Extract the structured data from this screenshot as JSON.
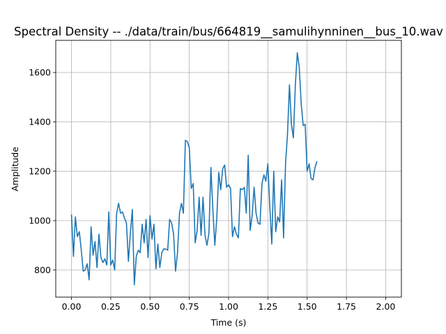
{
  "chart_data": {
    "type": "line",
    "title": "Spectral Density -- ./data/train/bus/664819__samulihynninen__bus_10.wav",
    "xlabel": "Time (s)",
    "ylabel": "Amplitude",
    "xlim": [
      -0.1,
      2.1
    ],
    "ylim": [
      690,
      1730
    ],
    "x_ticks": [
      0.0,
      0.25,
      0.5,
      0.75,
      1.0,
      1.25,
      1.5,
      1.75,
      2.0
    ],
    "x_tick_labels": [
      "0.00",
      "0.25",
      "0.50",
      "0.75",
      "1.00",
      "1.25",
      "1.50",
      "1.75",
      "2.00"
    ],
    "y_ticks": [
      800,
      1000,
      1200,
      1400,
      1600
    ],
    "y_tick_labels": [
      "800",
      "1000",
      "1200",
      "1400",
      "1600"
    ],
    "grid": true,
    "line_color": "#1f77b4",
    "series": [
      {
        "x_start": 0.0,
        "x_step": 0.0125,
        "values": [
          1025,
          855,
          1015,
          935,
          955,
          880,
          795,
          800,
          825,
          760,
          975,
          860,
          915,
          810,
          945,
          850,
          830,
          845,
          820,
          1035,
          820,
          840,
          800,
          1030,
          1070,
          1030,
          1035,
          1010,
          990,
          835,
          950,
          1045,
          740,
          855,
          880,
          870,
          985,
          910,
          1005,
          850,
          1020,
          925,
          985,
          805,
          905,
          810,
          870,
          885,
          885,
          880,
          1005,
          990,
          945,
          795,
          870,
          1030,
          1070,
          1030,
          1325,
          1320,
          1295,
          1130,
          1150,
          910,
          960,
          1095,
          940,
          1095,
          940,
          900,
          950,
          1215,
          1045,
          900,
          1010,
          1195,
          1125,
          1210,
          1225,
          1135,
          1145,
          1130,
          935,
          975,
          945,
          930,
          1130,
          1125,
          1135,
          1030,
          1265,
          960,
          1020,
          1135,
          1030,
          990,
          985,
          1150,
          1185,
          1160,
          1230,
          1055,
          905,
          1200,
          955,
          1015,
          995,
          1165,
          930,
          1230,
          1350,
          1550,
          1390,
          1335,
          1550,
          1680,
          1620,
          1470,
          1385,
          1390,
          1200,
          1230,
          1170,
          1165,
          1215,
          1240
        ]
      }
    ]
  }
}
